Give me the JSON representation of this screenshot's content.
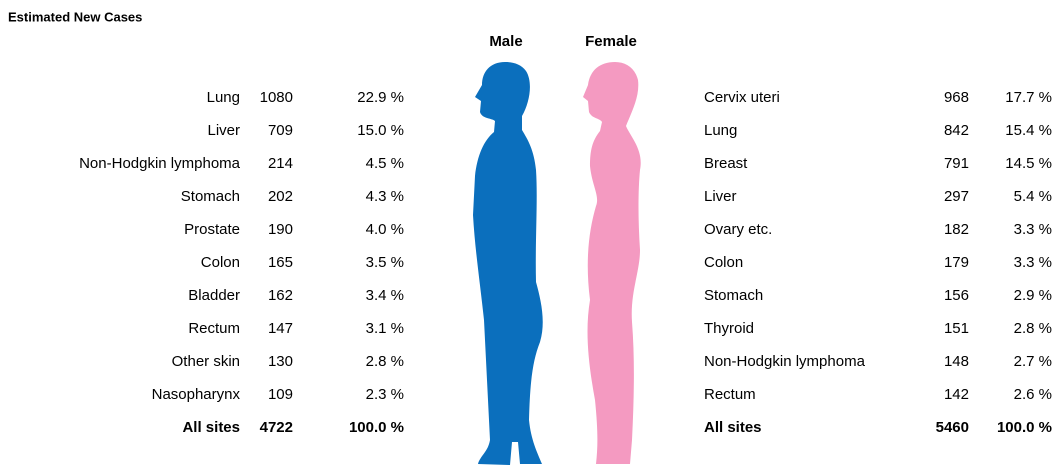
{
  "header": {
    "title": "Estimated New Cases",
    "male_label": "Male",
    "female_label": "Female"
  },
  "male": {
    "rows": [
      [
        "Lung",
        1080,
        "22.9 %"
      ],
      [
        "Liver",
        709,
        "15.0 %"
      ],
      [
        "Non-Hodgkin lymphoma",
        214,
        "4.5 %"
      ],
      [
        "Stomach",
        202,
        "4.3 %"
      ],
      [
        "Prostate",
        190,
        "4.0 %"
      ],
      [
        "Colon",
        165,
        "3.5 %"
      ],
      [
        "Bladder",
        162,
        "3.4 %"
      ],
      [
        "Rectum",
        147,
        "3.1 %"
      ],
      [
        "Other skin",
        130,
        "2.8 %"
      ],
      [
        "Nasopharynx",
        109,
        "2.3 %"
      ]
    ],
    "total": [
      "All sites",
      4722,
      "100.0 %"
    ]
  },
  "female": {
    "rows": [
      [
        "Cervix uteri",
        968,
        "17.7 %"
      ],
      [
        "Lung",
        842,
        "15.4 %"
      ],
      [
        "Breast",
        791,
        "14.5 %"
      ],
      [
        "Liver",
        297,
        "5.4 %"
      ],
      [
        "Ovary etc.",
        182,
        "3.3 %"
      ],
      [
        "Colon",
        179,
        "3.3 %"
      ],
      [
        "Stomach",
        156,
        "2.9 %"
      ],
      [
        "Thyroid",
        151,
        "2.8 %"
      ],
      [
        "Non-Hodgkin lymphoma",
        148,
        "2.7 %"
      ],
      [
        "Rectum",
        142,
        "2.6 %"
      ]
    ],
    "total": [
      "All sites",
      5460,
      "100.0 %"
    ]
  }
}
